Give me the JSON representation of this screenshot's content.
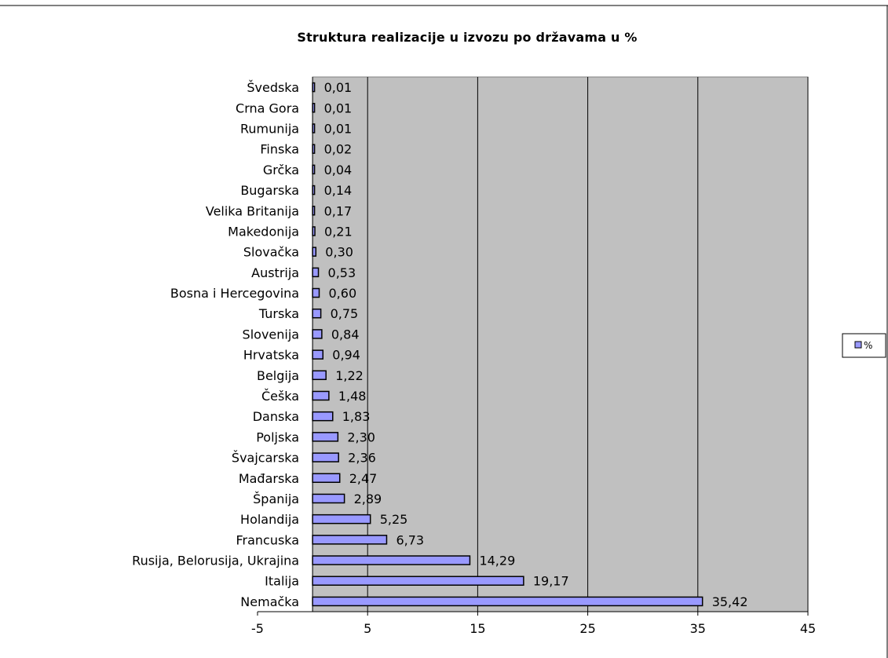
{
  "chart_data": {
    "type": "bar",
    "orientation": "horizontal",
    "title": "Struktura realizacije u izvozu po državama u %",
    "categories": [
      "Švedska",
      "Crna Gora",
      "Rumunija",
      "Finska",
      "Grčka",
      "Bugarska",
      "Velika Britanija",
      "Makedonija",
      "Slovačka",
      "Austrija",
      "Bosna i Hercegovina",
      "Turska",
      "Slovenija",
      "Hrvatska",
      "Belgija",
      "Češka",
      "Danska",
      "Poljska",
      "Švajcarska",
      "Mađarska",
      "Španija",
      "Holandija",
      "Francuska",
      "Rusija, Belorusija, Ukrajina",
      "Italija",
      "Nemačka"
    ],
    "series": [
      {
        "name": "%",
        "color": "#9999ff",
        "values": [
          0.01,
          0.01,
          0.01,
          0.02,
          0.04,
          0.14,
          0.17,
          0.21,
          0.3,
          0.53,
          0.6,
          0.75,
          0.84,
          0.94,
          1.22,
          1.48,
          1.83,
          2.3,
          2.36,
          2.47,
          2.89,
          5.25,
          6.73,
          14.29,
          19.17,
          35.42
        ],
        "labels": [
          "0,01",
          "0,01",
          "0,01",
          "0,02",
          "0,04",
          "0,14",
          "0,17",
          "0,21",
          "0,30",
          "0,53",
          "0,60",
          "0,75",
          "0,84",
          "0,94",
          "1,22",
          "1,48",
          "1,83",
          "2,30",
          "2,36",
          "2,47",
          "2,89",
          "5,25",
          "6,73",
          "14,29",
          "19,17",
          "35,42"
        ]
      }
    ],
    "xlim": [
      -5,
      45
    ],
    "xticks": [
      -5,
      5,
      15,
      25,
      35,
      45
    ],
    "xtick_labels": [
      "-5",
      "5",
      "15",
      "25",
      "35",
      "45"
    ],
    "grid": "vertical",
    "plot_background": "#c0c0c0",
    "legend": {
      "position": "right",
      "entries": [
        "%"
      ]
    }
  }
}
